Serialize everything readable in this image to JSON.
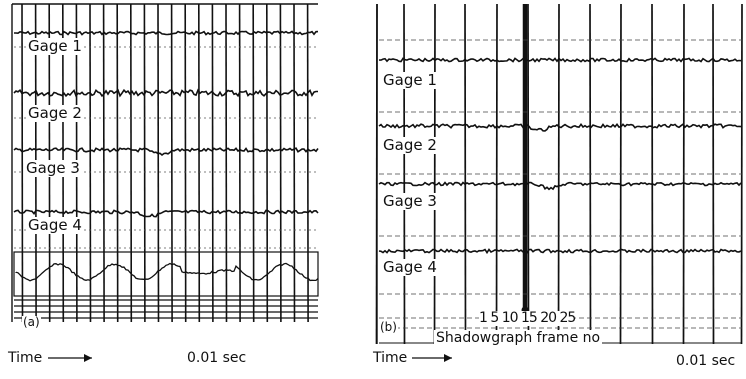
{
  "panel_a": {
    "tag": "(a)",
    "gages": [
      "Gage 1",
      "Gage 2",
      "Gage 3",
      "Gage 4"
    ],
    "time_label": "Time",
    "scale_label": "0.01 sec"
  },
  "panel_b": {
    "tag": "(b)",
    "gages": [
      "Gage 1",
      "Gage 2",
      "Gage 3",
      "Gage 4"
    ],
    "frame_numbers": "1 5 10 15 20 25",
    "frame_caption": "Shadowgraph frame no",
    "time_label": "Time",
    "scale_label": "0.01 sec"
  }
}
